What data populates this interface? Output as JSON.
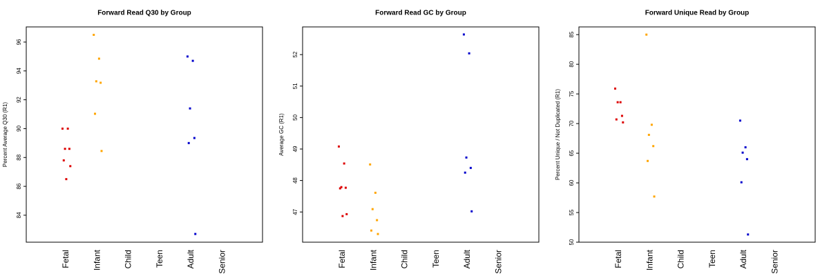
{
  "chart_data": [
    {
      "type": "strip",
      "title": "Forward Read Q30 by Group",
      "y_label": "Percent Average Q30 (R1)",
      "categories": [
        "Fetal",
        "Infant",
        "Child",
        "Teen",
        "Adult",
        "Senior"
      ],
      "colors": [
        "#dd0000",
        "#ffa500",
        null,
        null,
        "#0000cc",
        null
      ],
      "values": [
        [
          90.0,
          90.0,
          88.6,
          88.6,
          87.8,
          87.4,
          86.5
        ],
        [
          96.5,
          94.85,
          93.28,
          93.18,
          91.03,
          88.45
        ],
        [],
        [],
        [
          95.0,
          94.7,
          91.4,
          89.35,
          89.0,
          82.7
        ],
        []
      ],
      "ylim": [
        82.13,
        97.05
      ],
      "yticks": [
        84,
        86,
        88,
        90,
        92,
        94,
        96
      ]
    },
    {
      "type": "strip",
      "title": "Forward Read GC by Group",
      "y_label": "Average GC (R1)",
      "categories": [
        "Fetal",
        "Infant",
        "Child",
        "Teen",
        "Adult",
        "Senior"
      ],
      "colors": [
        "#dd0000",
        "#ffa500",
        null,
        null,
        "#0000cc",
        null
      ],
      "values": [
        [
          49.08,
          48.54,
          47.79,
          47.77,
          47.75,
          46.93,
          46.87
        ],
        [
          48.51,
          47.61,
          47.09,
          46.74,
          46.41,
          46.3
        ],
        [],
        [],
        [
          52.64,
          52.04,
          48.73,
          48.4,
          48.25,
          47.02
        ],
        []
      ],
      "ylim": [
        46.04,
        52.88
      ],
      "yticks": [
        47,
        48,
        49,
        50,
        51,
        52
      ]
    },
    {
      "type": "strip",
      "title": "Forward Unique Read by Group",
      "y_label": "Percent Unique / Not Duplicated (R1)",
      "categories": [
        "Fetal",
        "Infant",
        "Child",
        "Teen",
        "Adult",
        "Senior"
      ],
      "colors": [
        "#dd0000",
        "#ffa500",
        null,
        null,
        "#0000cc",
        null
      ],
      "values": [
        [
          75.9,
          73.6,
          73.6,
          71.3,
          70.7,
          70.2
        ],
        [
          85.0,
          69.8,
          68.1,
          66.2,
          63.7,
          57.7
        ],
        [],
        [],
        [
          70.5,
          66.0,
          65.1,
          64.0,
          60.1,
          51.3
        ],
        []
      ],
      "ylim": [
        50,
        86.3
      ],
      "yticks": [
        50,
        55,
        60,
        65,
        70,
        75,
        80,
        85
      ]
    }
  ]
}
